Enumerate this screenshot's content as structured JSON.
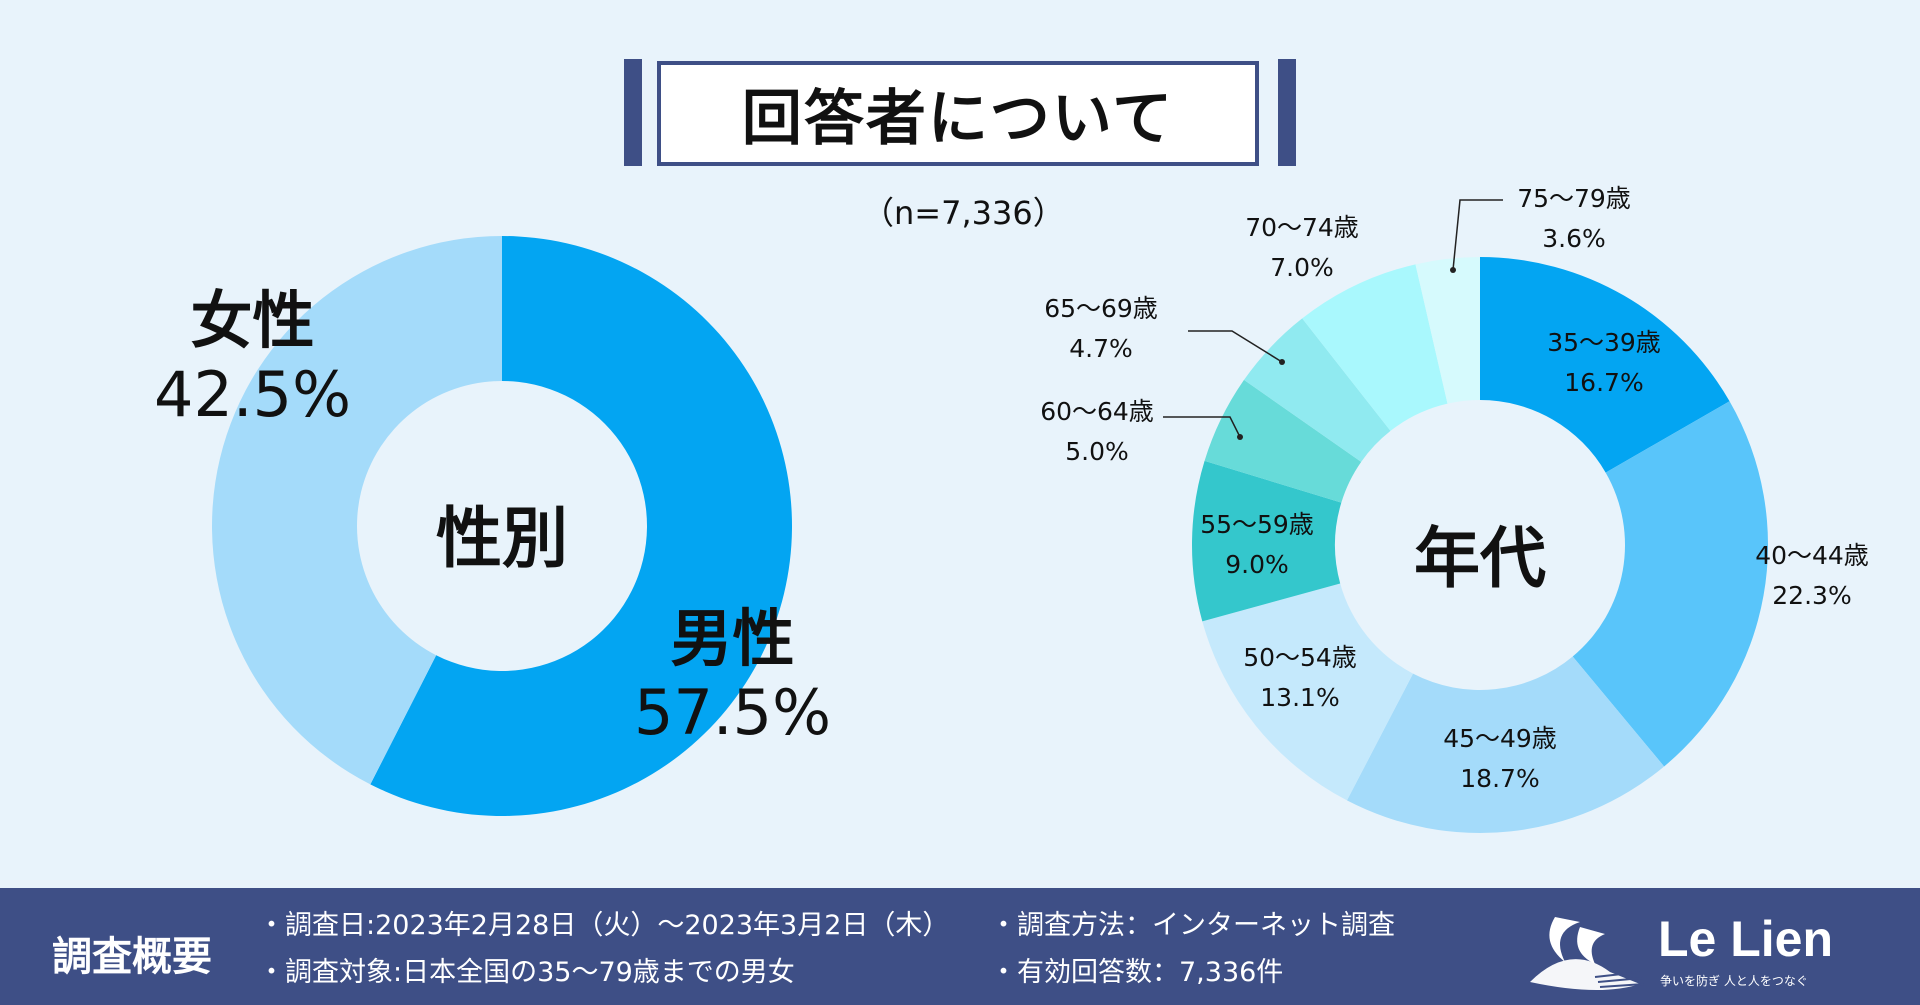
{
  "title": "回答者について",
  "sample_size": "（n=7,336）",
  "chart_data": [
    {
      "type": "pie",
      "center_label": "性別",
      "categories": [
        "男性",
        "女性"
      ],
      "values": [
        57.5,
        42.5
      ],
      "value_labels": [
        "57.5%",
        "42.5%"
      ],
      "colors": [
        "#03a5f2",
        "#a4dbfa"
      ]
    },
    {
      "type": "pie",
      "center_label": "年代",
      "categories": [
        "35〜39歳",
        "40〜44歳",
        "45〜49歳",
        "50〜54歳",
        "55〜59歳",
        "60〜64歳",
        "65〜69歳",
        "70〜74歳",
        "75〜79歳"
      ],
      "values": [
        16.7,
        22.3,
        18.7,
        13.1,
        9.0,
        5.0,
        4.7,
        7.0,
        3.6
      ],
      "value_labels": [
        "16.7%",
        "22.3%",
        "18.7%",
        "13.1%",
        "9.0%",
        "5.0%",
        "4.7%",
        "7.0%",
        "3.6%"
      ],
      "colors": [
        "#03a5f2",
        "#59c5fa",
        "#a4dbfa",
        "#c5e9fc",
        "#34c7cc",
        "#67dbd9",
        "#90eaf0",
        "#a9f8fd",
        "#d6fafd"
      ]
    }
  ],
  "footer": {
    "heading": "調査概要",
    "items": [
      "・調査日:2023年2月28日（火）〜2023年3月2日（木）",
      "・調査方法：インターネット調査",
      "・調査対象:日本全国の35〜79歳までの男女",
      "・有効回答数：7,336件"
    ],
    "logo_text": "Le Lien",
    "logo_tagline": "争いを防ぎ 人と人をつなぐ"
  }
}
